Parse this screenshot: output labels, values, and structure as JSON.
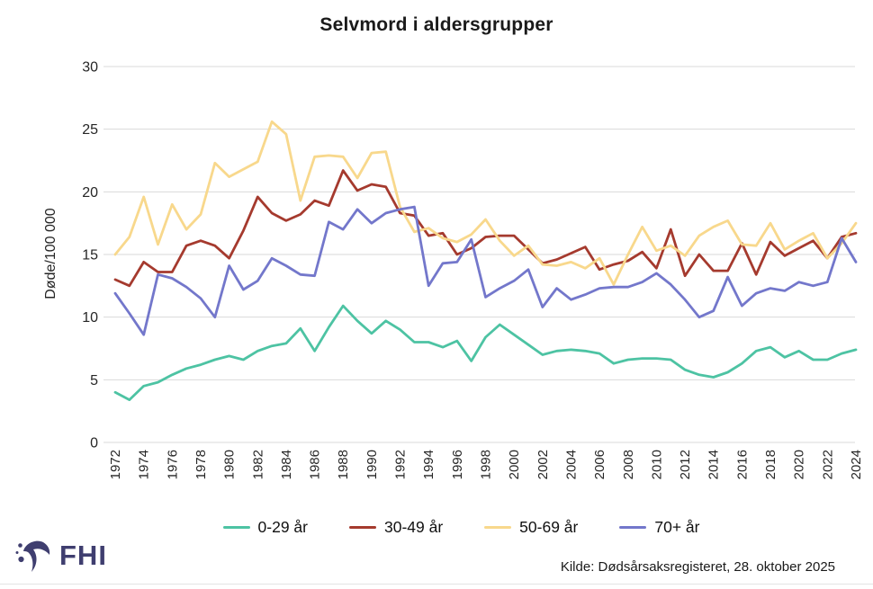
{
  "chart_data": {
    "type": "line",
    "title": "Selvmord i aldersgrupper",
    "ylabel": "Døde/100 000",
    "ylim": [
      0,
      30
    ],
    "yticks": [
      0,
      5,
      10,
      15,
      20,
      25,
      30
    ],
    "xtick_step": 2,
    "grid": "horizontal",
    "legend_position": "bottom",
    "x": [
      1972,
      1973,
      1974,
      1975,
      1976,
      1977,
      1978,
      1979,
      1980,
      1981,
      1982,
      1983,
      1984,
      1985,
      1986,
      1987,
      1988,
      1989,
      1990,
      1991,
      1992,
      1993,
      1994,
      1995,
      1996,
      1997,
      1998,
      1999,
      2000,
      2001,
      2002,
      2003,
      2004,
      2005,
      2006,
      2007,
      2008,
      2009,
      2010,
      2011,
      2012,
      2013,
      2014,
      2015,
      2016,
      2017,
      2018,
      2019,
      2020,
      2021,
      2022,
      2023,
      2024
    ],
    "series": [
      {
        "name": "0-29 år",
        "color": "#4DC3A3",
        "values": [
          4.0,
          3.4,
          4.5,
          4.8,
          5.4,
          5.9,
          6.2,
          6.6,
          6.9,
          6.6,
          7.3,
          7.7,
          7.9,
          9.1,
          7.3,
          9.2,
          10.9,
          9.7,
          8.7,
          9.7,
          9.0,
          8.0,
          8.0,
          7.6,
          8.1,
          6.5,
          8.4,
          9.4,
          8.6,
          7.8,
          7.0,
          7.3,
          7.4,
          7.3,
          7.1,
          6.3,
          6.6,
          6.7,
          6.7,
          6.6,
          5.8,
          5.4,
          5.2,
          5.6,
          6.3,
          7.3,
          7.6,
          6.8,
          7.3,
          6.6,
          6.6,
          7.1,
          7.4
        ]
      },
      {
        "name": "30-49 år",
        "color": "#A53A2E",
        "values": [
          13.0,
          12.5,
          14.4,
          13.6,
          13.6,
          15.7,
          16.1,
          15.7,
          14.7,
          16.9,
          19.6,
          18.3,
          17.7,
          18.2,
          19.3,
          18.9,
          21.7,
          20.1,
          20.6,
          20.4,
          18.3,
          18.1,
          16.5,
          16.7,
          15.0,
          15.5,
          16.4,
          16.5,
          16.5,
          15.4,
          14.3,
          14.6,
          15.1,
          15.6,
          13.8,
          14.2,
          14.5,
          15.2,
          13.9,
          17.0,
          13.3,
          15.0,
          13.7,
          13.7,
          15.9,
          13.4,
          16.0,
          14.9,
          15.5,
          16.1,
          14.7,
          16.4,
          16.7
        ]
      },
      {
        "name": "50-69 år",
        "color": "#F8D88C",
        "values": [
          15.0,
          16.4,
          19.6,
          15.8,
          19.0,
          17.0,
          18.2,
          22.3,
          21.2,
          21.8,
          22.4,
          25.6,
          24.6,
          19.3,
          22.8,
          22.9,
          22.8,
          21.1,
          23.1,
          23.2,
          18.8,
          16.8,
          17.1,
          16.3,
          16.0,
          16.6,
          17.8,
          16.1,
          14.9,
          15.7,
          14.2,
          14.1,
          14.4,
          13.9,
          14.7,
          12.6,
          15.0,
          17.2,
          15.3,
          15.7,
          14.9,
          16.5,
          17.2,
          17.7,
          15.8,
          15.7,
          17.5,
          15.4,
          16.1,
          16.7,
          14.7,
          15.9,
          17.5
        ]
      },
      {
        "name": "70+ år",
        "color": "#7377CB",
        "values": [
          11.9,
          10.3,
          8.6,
          13.4,
          13.1,
          12.4,
          11.5,
          10.0,
          14.1,
          12.2,
          12.9,
          14.7,
          14.1,
          13.4,
          13.3,
          17.6,
          17.0,
          18.6,
          17.5,
          18.3,
          18.6,
          18.8,
          12.5,
          14.3,
          14.4,
          16.2,
          11.6,
          12.3,
          12.9,
          13.8,
          10.8,
          12.3,
          11.4,
          11.8,
          12.3,
          12.4,
          12.4,
          12.8,
          13.5,
          12.6,
          11.4,
          10.0,
          10.5,
          13.2,
          10.9,
          11.9,
          12.3,
          12.1,
          12.8,
          12.5,
          12.8,
          16.3,
          14.4
        ]
      }
    ]
  },
  "colors": {
    "grid": "#D9D9D9",
    "text": "#262626",
    "logo": "#3F3E6F",
    "background": "#FFFFFF"
  },
  "footer": {
    "source_label": "Kilde: Dødsårsaksregisteret, 28. oktober 2025",
    "logo_text": "FHI"
  }
}
